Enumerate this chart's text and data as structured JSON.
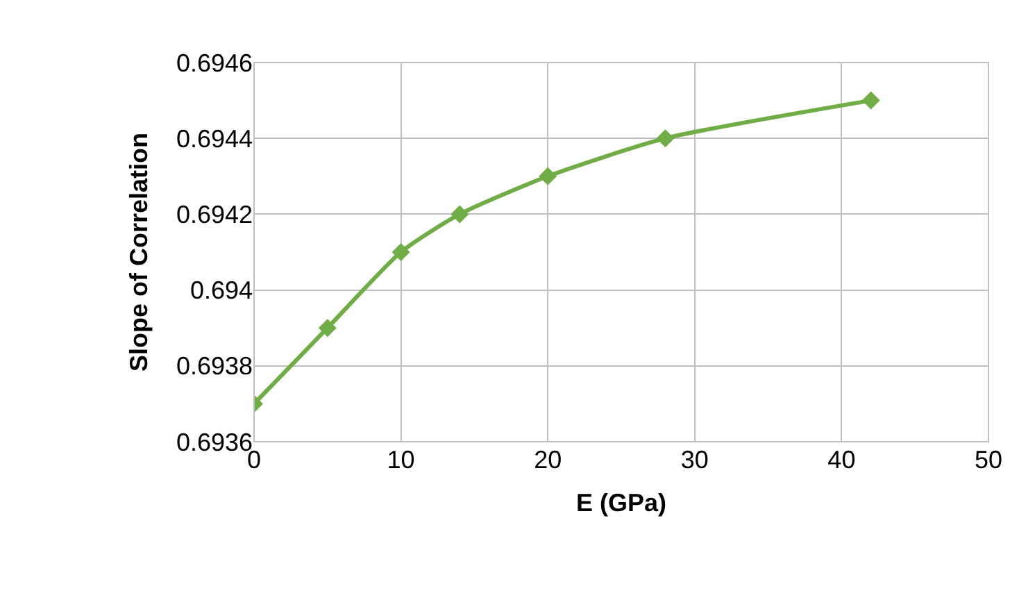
{
  "chart_data": {
    "type": "line",
    "xlabel": "E (GPa)",
    "ylabel": "Slope of Correlation",
    "x": [
      0,
      5,
      10,
      14,
      20,
      28,
      42
    ],
    "series": [
      {
        "color": "#70ad47",
        "values": [
          0.6937,
          0.6939,
          0.6941,
          0.6942,
          0.6943,
          0.6944,
          0.6945
        ]
      }
    ],
    "xlim": [
      0,
      50
    ],
    "xticks": [
      0,
      10,
      20,
      30,
      40,
      50
    ],
    "ylim": [
      0.6936,
      0.6946
    ],
    "yticks": [
      0.6936,
      0.6938,
      0.694,
      0.6942,
      0.6944,
      0.6946
    ],
    "grid": true,
    "marker": "diamond",
    "line_style": "solid"
  }
}
